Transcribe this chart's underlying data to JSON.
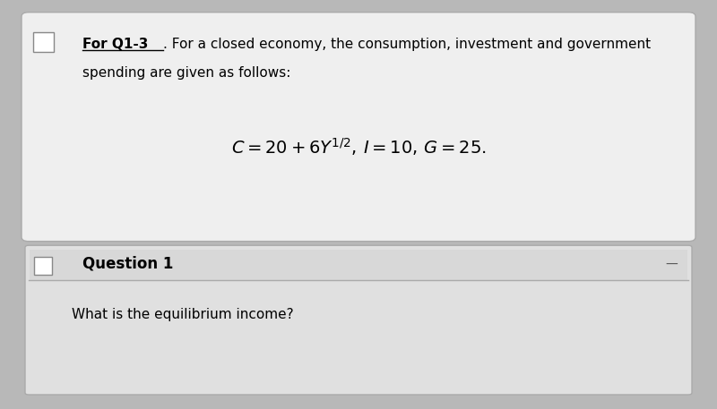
{
  "bg_color": "#b8b8b8",
  "box1_bg": "#efefef",
  "box2_header_bg": "#d8d8d8",
  "box2_body_bg": "#e0e0e0",
  "underline_text": "For Q1-3",
  "intro_rest": ". For a closed economy, the consumption, investment and government",
  "intro_line2": "spending are given as follows:",
  "formula": "$C = 20 + 6Y^{1/2},\\, I = 10,\\, G = 25.$",
  "question_label": "Question 1",
  "question_body": "What is the equilibrium income?",
  "title_fontsize": 11,
  "formula_fontsize": 14,
  "question_fontsize": 12,
  "body_fontsize": 11
}
